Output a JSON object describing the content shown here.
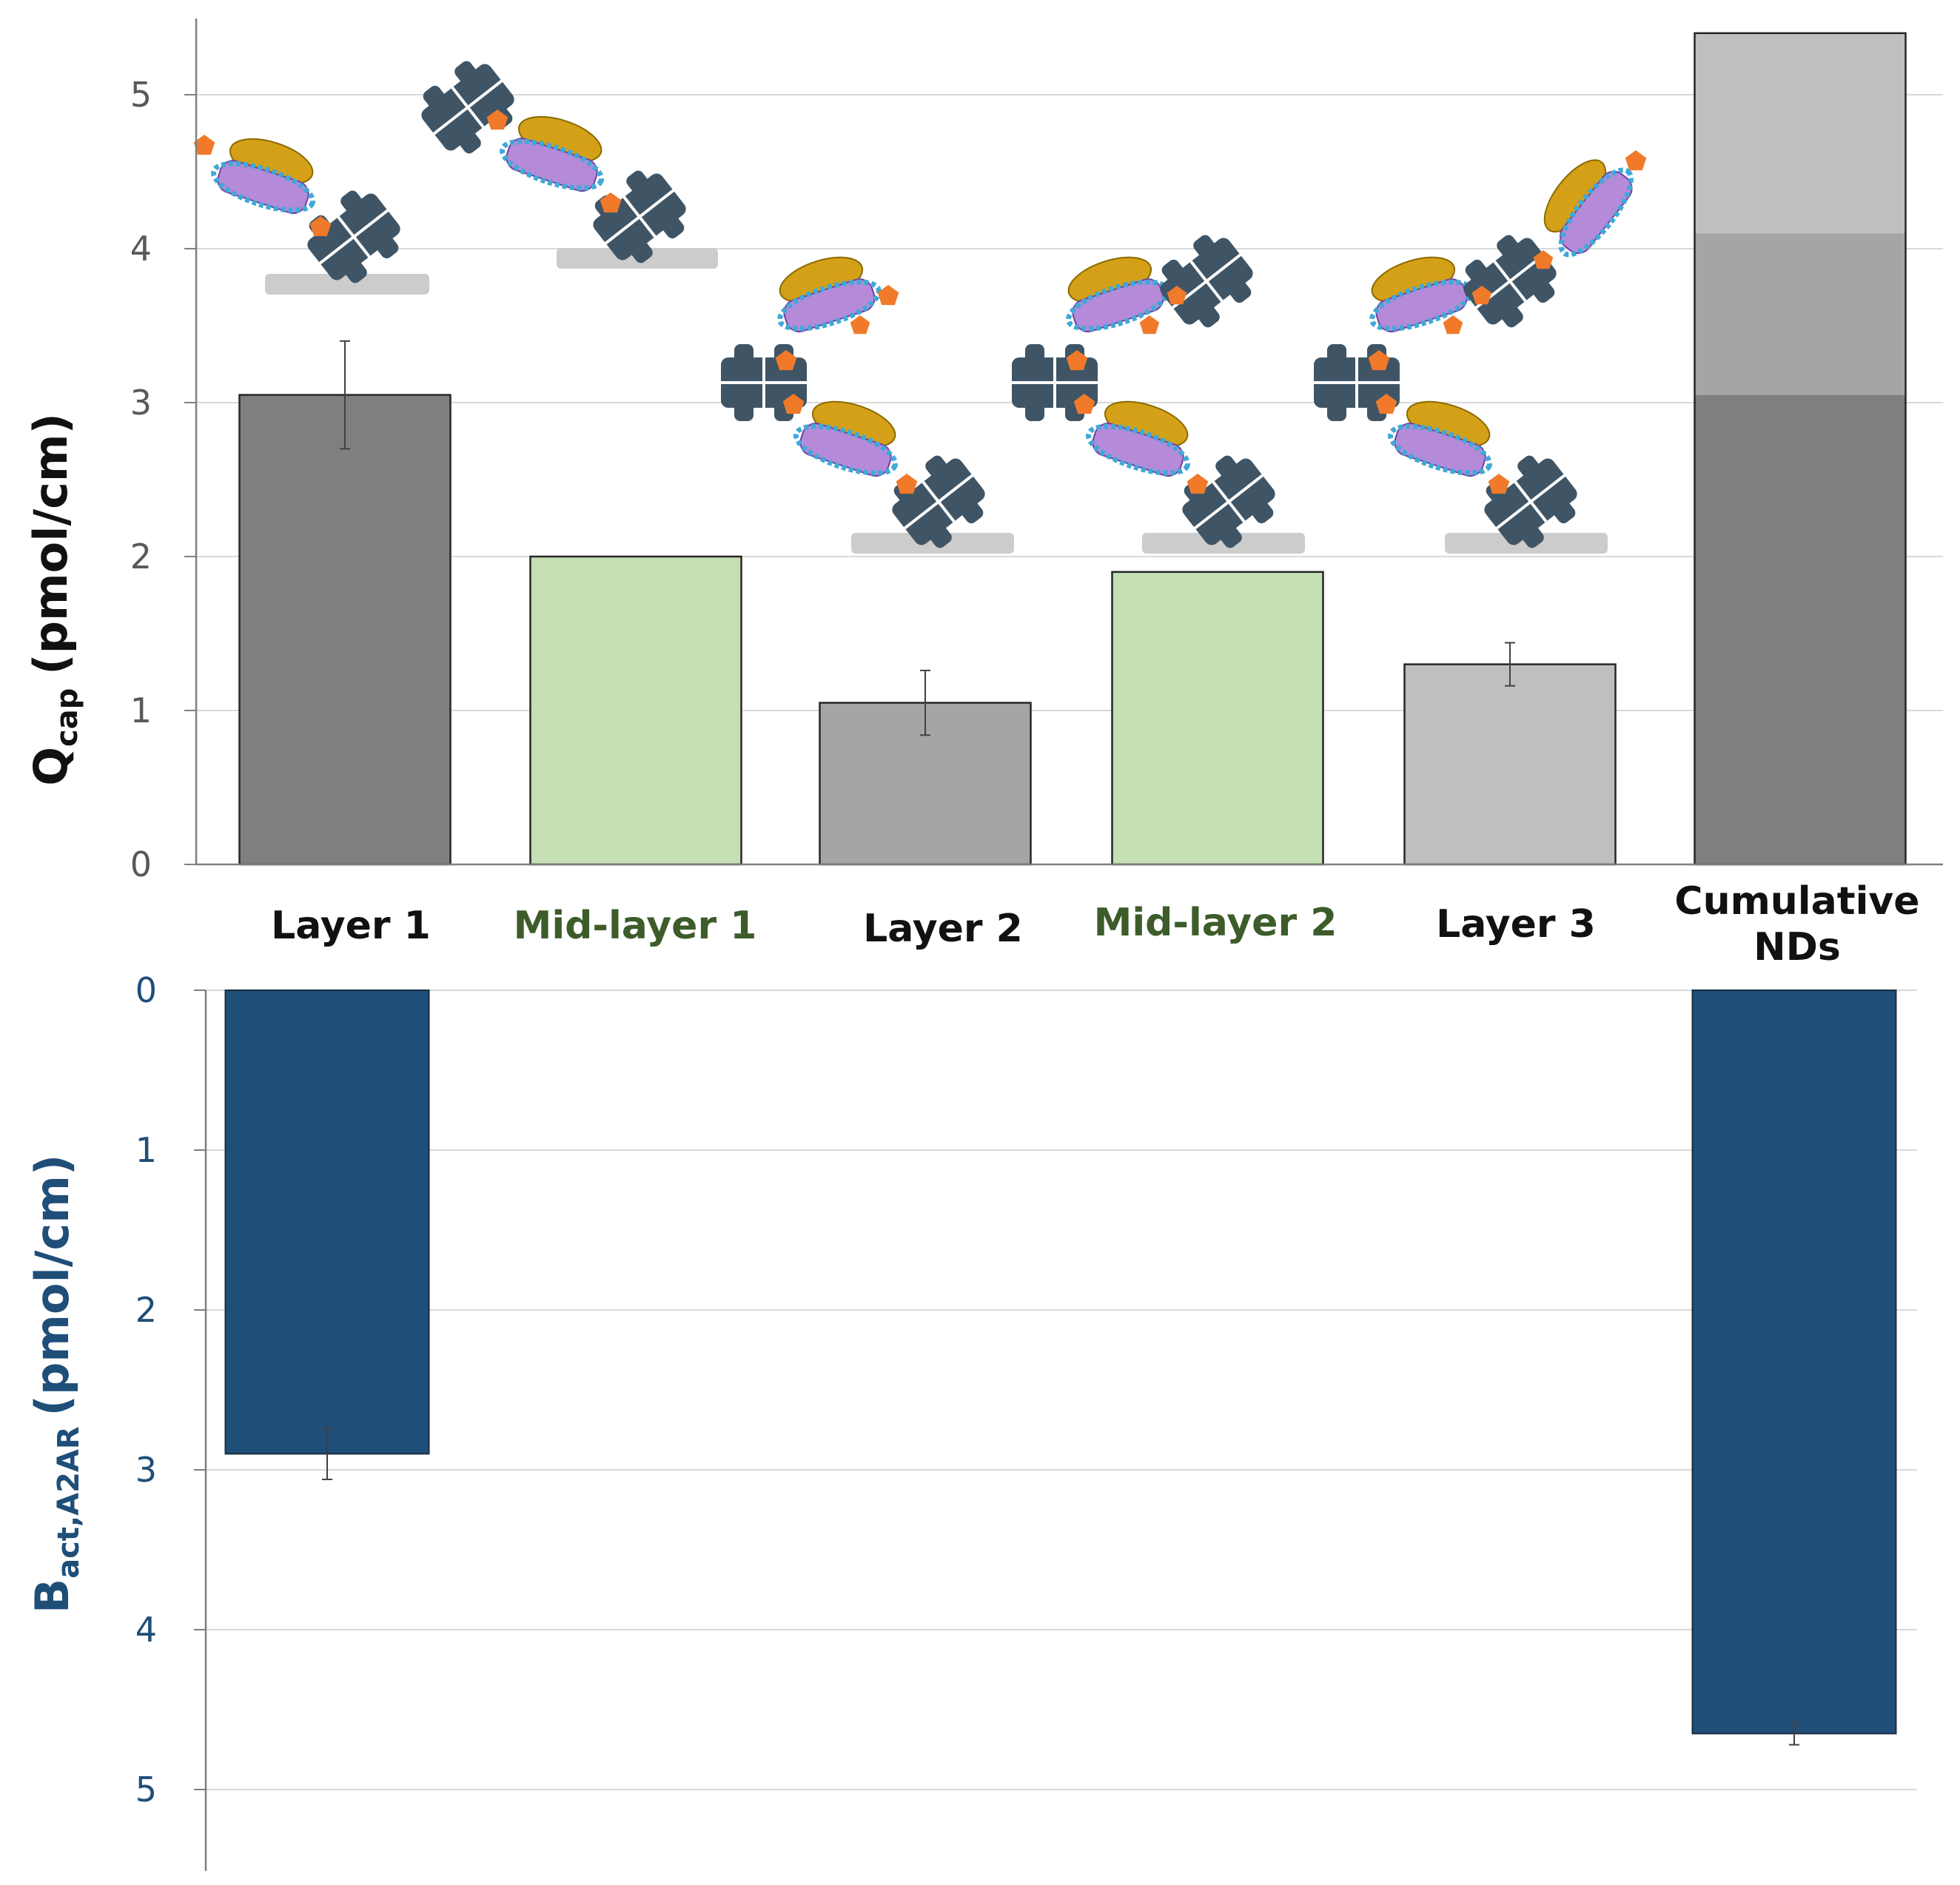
{
  "chart_data": [
    {
      "type": "bar",
      "name": "top",
      "categories": [
        "Layer 1",
        "Mid-layer 1",
        "Layer 2",
        "Mid-layer 2",
        "Layer 3",
        "Cumulative NDs"
      ],
      "category_lines": [
        [
          "Layer 1"
        ],
        [
          "Mid-layer 1"
        ],
        [
          "Layer 2"
        ],
        [
          "Mid-layer 2"
        ],
        [
          "Layer 3"
        ],
        [
          "Cumulative",
          "NDs"
        ]
      ],
      "values": [
        3.05,
        2.0,
        1.05,
        1.9,
        1.3,
        5.4
      ],
      "errors": [
        0.35,
        null,
        0.21,
        null,
        0.14,
        null
      ],
      "stacked_last": [
        3.05,
        1.05,
        1.3
      ],
      "ylabel_main": "Q",
      "ylabel_sub": "cap",
      "ylabel_unit": "(pmol/cm)",
      "ylim": [
        0,
        5.5
      ],
      "yticks": [
        "0",
        "1",
        "2",
        "3",
        "4",
        "5"
      ],
      "grid": true
    },
    {
      "type": "bar",
      "name": "bottom",
      "orientation": "inverted",
      "categories": [
        "Layer 1",
        "Cumulative NDs"
      ],
      "values": [
        2.9,
        4.65
      ],
      "errors": [
        0.16,
        0.07
      ],
      "ylabel_main": "B",
      "ylabel_sub": "act,A2AR",
      "ylabel_unit": "(pmol/cm)",
      "ylim": [
        0,
        5.5
      ],
      "yticks": [
        "0",
        "1",
        "2",
        "3",
        "4",
        "5"
      ],
      "grid": true
    }
  ],
  "colors": {
    "layer1": "#7f7f7f",
    "midlayer": "#c5e0b4",
    "layer2": "#a5a5a5",
    "layer3": "#bfbfbf",
    "cum_mid": "#a5a5a5",
    "cum_top": "#bfbfbf",
    "label_black": "#111111",
    "label_green": "#3d5c2a",
    "navy": "#1f4e79",
    "grid": "#d9d9d9",
    "axis": "#7f7f7f",
    "tick_text": "#595959",
    "gold": "#d4a017",
    "purple": "#b58ad8",
    "blue_belt": "#3fa9d8",
    "orange": "#f07a2a",
    "slate": "#3f5566",
    "surface": "#cccccc"
  }
}
